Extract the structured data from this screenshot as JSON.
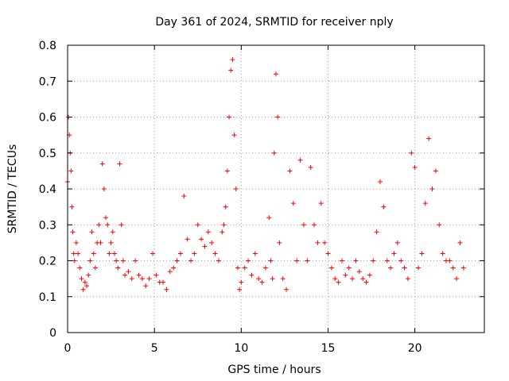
{
  "chart_data": {
    "type": "scatter",
    "title": "Day 361 of 2024, SRMTID for receiver nply",
    "xlabel": "GPS time / hours",
    "ylabel": "SRMTID / TECUs",
    "xlim": [
      0,
      24
    ],
    "ylim": [
      0,
      0.8
    ],
    "xticks": [
      0,
      5,
      10,
      15,
      20
    ],
    "yticks": [
      0,
      0.1,
      0.2,
      0.3,
      0.4,
      0.5,
      0.6,
      0.7,
      0.8
    ],
    "xtick_labels": [
      "0",
      "5",
      "10",
      "15",
      "20"
    ],
    "ytick_labels": [
      "0",
      "0.1",
      "0.2",
      "0.3",
      "0.4",
      "0.5",
      "0.6",
      "0.7",
      "0.8"
    ],
    "grid": true,
    "marker": "+",
    "marker_color": "#ff0000",
    "series": [
      {
        "name": "SRMTID",
        "x": [
          0.0,
          0.05,
          0.1,
          0.15,
          0.2,
          0.25,
          0.3,
          0.35,
          0.4,
          0.5,
          0.6,
          0.7,
          0.8,
          0.9,
          1.0,
          1.1,
          1.2,
          1.3,
          1.4,
          1.5,
          1.6,
          1.7,
          1.8,
          1.9,
          2.0,
          2.1,
          2.2,
          2.3,
          2.4,
          2.5,
          2.6,
          2.7,
          2.8,
          2.9,
          3.0,
          3.1,
          3.2,
          3.3,
          3.5,
          3.7,
          3.9,
          4.1,
          4.3,
          4.5,
          4.7,
          4.9,
          5.1,
          5.3,
          5.5,
          5.7,
          5.9,
          6.1,
          6.3,
          6.5,
          6.7,
          6.9,
          7.1,
          7.3,
          7.5,
          7.7,
          7.9,
          8.1,
          8.3,
          8.5,
          8.7,
          8.9,
          9.0,
          9.1,
          9.2,
          9.3,
          9.4,
          9.5,
          9.6,
          9.7,
          9.8,
          9.9,
          10.0,
          10.2,
          10.4,
          10.6,
          10.8,
          11.0,
          11.2,
          11.4,
          11.6,
          11.7,
          11.8,
          11.9,
          12.0,
          12.1,
          12.2,
          12.4,
          12.6,
          12.8,
          13.0,
          13.2,
          13.4,
          13.6,
          13.8,
          14.0,
          14.2,
          14.4,
          14.6,
          14.8,
          15.0,
          15.2,
          15.4,
          15.6,
          15.8,
          16.0,
          16.2,
          16.4,
          16.6,
          16.8,
          17.0,
          17.2,
          17.4,
          17.6,
          17.8,
          18.0,
          18.2,
          18.4,
          18.6,
          18.8,
          19.0,
          19.2,
          19.4,
          19.6,
          19.8,
          20.0,
          20.2,
          20.4,
          20.6,
          20.8,
          21.0,
          21.2,
          21.4,
          21.6,
          21.8,
          22.0,
          22.2,
          22.4,
          22.6,
          22.8
        ],
        "y": [
          0.42,
          0.6,
          0.55,
          0.5,
          0.45,
          0.35,
          0.28,
          0.22,
          0.2,
          0.25,
          0.22,
          0.18,
          0.15,
          0.12,
          0.14,
          0.13,
          0.16,
          0.2,
          0.28,
          0.22,
          0.18,
          0.25,
          0.3,
          0.25,
          0.47,
          0.4,
          0.32,
          0.3,
          0.22,
          0.25,
          0.28,
          0.22,
          0.2,
          0.18,
          0.47,
          0.3,
          0.2,
          0.16,
          0.17,
          0.15,
          0.2,
          0.16,
          0.15,
          0.13,
          0.15,
          0.22,
          0.16,
          0.14,
          0.14,
          0.12,
          0.17,
          0.18,
          0.2,
          0.22,
          0.38,
          0.26,
          0.2,
          0.22,
          0.3,
          0.26,
          0.24,
          0.28,
          0.25,
          0.22,
          0.2,
          0.28,
          0.3,
          0.35,
          0.45,
          0.6,
          0.73,
          0.76,
          0.55,
          0.4,
          0.18,
          0.12,
          0.14,
          0.18,
          0.2,
          0.16,
          0.22,
          0.15,
          0.14,
          0.18,
          0.32,
          0.2,
          0.15,
          0.5,
          0.72,
          0.6,
          0.25,
          0.15,
          0.12,
          0.45,
          0.36,
          0.2,
          0.48,
          0.3,
          0.2,
          0.46,
          0.3,
          0.25,
          0.36,
          0.25,
          0.22,
          0.18,
          0.15,
          0.14,
          0.2,
          0.16,
          0.18,
          0.15,
          0.2,
          0.17,
          0.15,
          0.14,
          0.16,
          0.2,
          0.28,
          0.42,
          0.35,
          0.2,
          0.18,
          0.22,
          0.25,
          0.2,
          0.18,
          0.15,
          0.5,
          0.46,
          0.18,
          0.22,
          0.36,
          0.54,
          0.4,
          0.45,
          0.3,
          0.22,
          0.2,
          0.2,
          0.18,
          0.15,
          0.25,
          0.18
        ]
      }
    ]
  }
}
